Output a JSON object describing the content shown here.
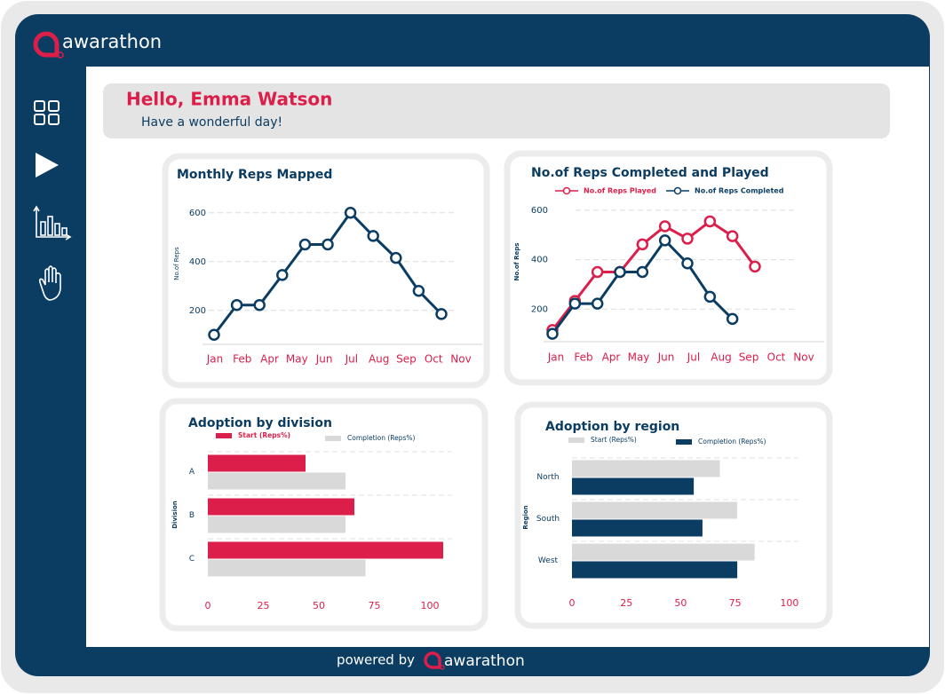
{
  "brand": "awarathon",
  "greeting": {
    "title": "Hello, Emma Watson",
    "subtitle": "Have a wonderful day!"
  },
  "footer": {
    "text": "powered by",
    "brand": "awarathon"
  },
  "chart_data": [
    {
      "type": "line",
      "title": "Monthly Reps Mapped",
      "y_label": "No.of Reps",
      "categories": [
        "Jan",
        "Feb",
        null,
        "Apr",
        "May",
        "Jun",
        "Jul",
        "Aug",
        "Sep",
        "Oct",
        "Nov"
      ],
      "series": [
        {
          "color": "#0b3d63",
          "values": [
            100,
            222,
            222,
            345,
            470,
            470,
            600,
            505,
            415,
            280,
            185
          ]
        }
      ],
      "ylim": [
        50,
        650
      ],
      "yticks": [
        200,
        400,
        600
      ],
      "grid": true
    },
    {
      "type": "line",
      "title": "No.of Reps Completed and Played",
      "y_label": "No.of Reps",
      "categories": [
        "Jan",
        "Feb",
        "Apr",
        "May",
        "Jun",
        "Jul",
        "Aug",
        "Sep",
        "Oct",
        "Nov"
      ],
      "series": [
        {
          "name": "No.of Reps Played",
          "color": "#dc1e4a",
          "values": [
            115,
            233,
            350,
            350,
            462,
            535,
            485,
            555,
            495,
            372
          ]
        },
        {
          "name": "No.of Reps Completed",
          "color": "#0b3d63",
          "values": [
            100,
            222,
            222,
            350,
            350,
            478,
            385,
            250,
            160,
            null
          ]
        }
      ],
      "ylim": [
        50,
        650
      ],
      "yticks": [
        200,
        400,
        600
      ],
      "grid": true
    },
    {
      "type": "hbar",
      "title": "Adoption by division",
      "y_label": "Division",
      "categories": [
        "A",
        "B",
        "C"
      ],
      "series": [
        {
          "name": "Start (Reps%)",
          "color": "#dc1e4a",
          "values": [
            44,
            66,
            106
          ]
        },
        {
          "name": "Completion (Reps%)",
          "color": "#d9d9d9",
          "values": [
            62,
            62,
            71
          ]
        }
      ],
      "xlim": [
        0,
        110
      ],
      "xticks": [
        0,
        25,
        50,
        75,
        100
      ]
    },
    {
      "type": "hbar",
      "title": "Adoption by region",
      "y_label": "Region",
      "categories": [
        "North",
        "South",
        "West"
      ],
      "series": [
        {
          "name": "Start (Reps%)",
          "color": "#d9d9d9",
          "values": [
            68,
            76,
            84
          ]
        },
        {
          "name": "Completion (Reps%)",
          "color": "#0b3d63",
          "values": [
            56,
            60,
            76
          ]
        }
      ],
      "xlim": [
        0,
        107
      ],
      "xticks": [
        0,
        25,
        50,
        75,
        100
      ]
    }
  ]
}
